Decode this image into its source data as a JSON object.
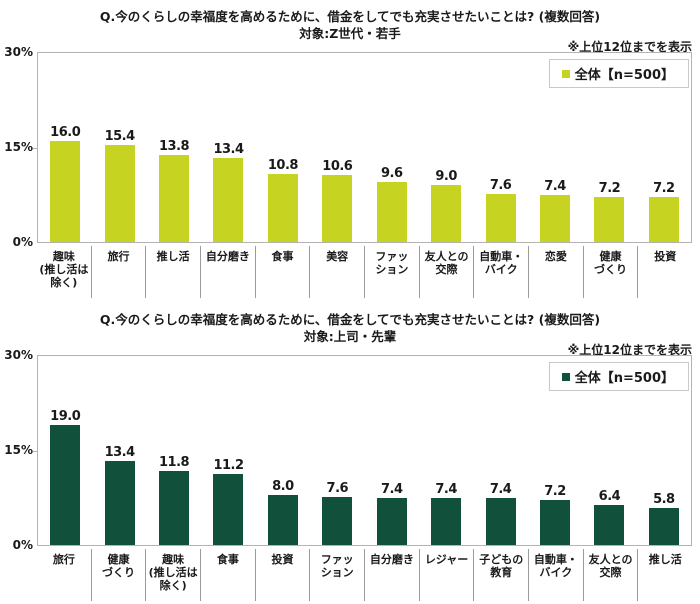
{
  "page": {
    "background": "#ffffff"
  },
  "chart_data": [
    {
      "type": "bar",
      "title": "Q.今のくらしの幸福度を高めるために、借金をしてでも充実させたいことは? (複数回答)",
      "subtitle": "対象:Z世代・若手",
      "note": "※上位12位までを表示",
      "legend_label": "全体【n=500】",
      "legend_position": "top-right",
      "bar_color": "#c6d320",
      "grid": false,
      "ylim": [
        0,
        30
      ],
      "yticks": [
        "30%",
        "15%",
        "0%"
      ],
      "categories": [
        [
          "趣味",
          "(推し活は",
          "除く)"
        ],
        [
          "旅行"
        ],
        [
          "推し活"
        ],
        [
          "自分磨き"
        ],
        [
          "食事"
        ],
        [
          "美容"
        ],
        [
          "ファッ",
          "ション"
        ],
        [
          "友人との",
          "交際"
        ],
        [
          "自動車・",
          "バイク"
        ],
        [
          "恋愛"
        ],
        [
          "健康",
          "づくり"
        ],
        [
          "投資"
        ]
      ],
      "values": [
        16.0,
        15.4,
        13.8,
        13.4,
        10.8,
        10.6,
        9.6,
        9.0,
        7.6,
        7.4,
        7.2,
        7.2
      ]
    },
    {
      "type": "bar",
      "title": "Q.今のくらしの幸福度を高めるために、借金をしてでも充実させたいことは? (複数回答)",
      "subtitle": "対象:上司・先輩",
      "note": "※上位12位までを表示",
      "legend_label": "全体【n=500】",
      "legend_position": "top-right",
      "bar_color": "#11503a",
      "grid": false,
      "ylim": [
        0,
        30
      ],
      "yticks": [
        "30%",
        "15%",
        "0%"
      ],
      "categories": [
        [
          "旅行"
        ],
        [
          "健康",
          "づくり"
        ],
        [
          "趣味",
          "(推し活は",
          "除く)"
        ],
        [
          "食事"
        ],
        [
          "投資"
        ],
        [
          "ファッ",
          "ション"
        ],
        [
          "自分磨き"
        ],
        [
          "レジャー"
        ],
        [
          "子どもの",
          "教育"
        ],
        [
          "自動車・",
          "バイク"
        ],
        [
          "友人との",
          "交際"
        ],
        [
          "推し活"
        ]
      ],
      "values": [
        19.0,
        13.4,
        11.8,
        11.2,
        8.0,
        7.6,
        7.4,
        7.4,
        7.4,
        7.2,
        6.4,
        5.8
      ]
    }
  ]
}
